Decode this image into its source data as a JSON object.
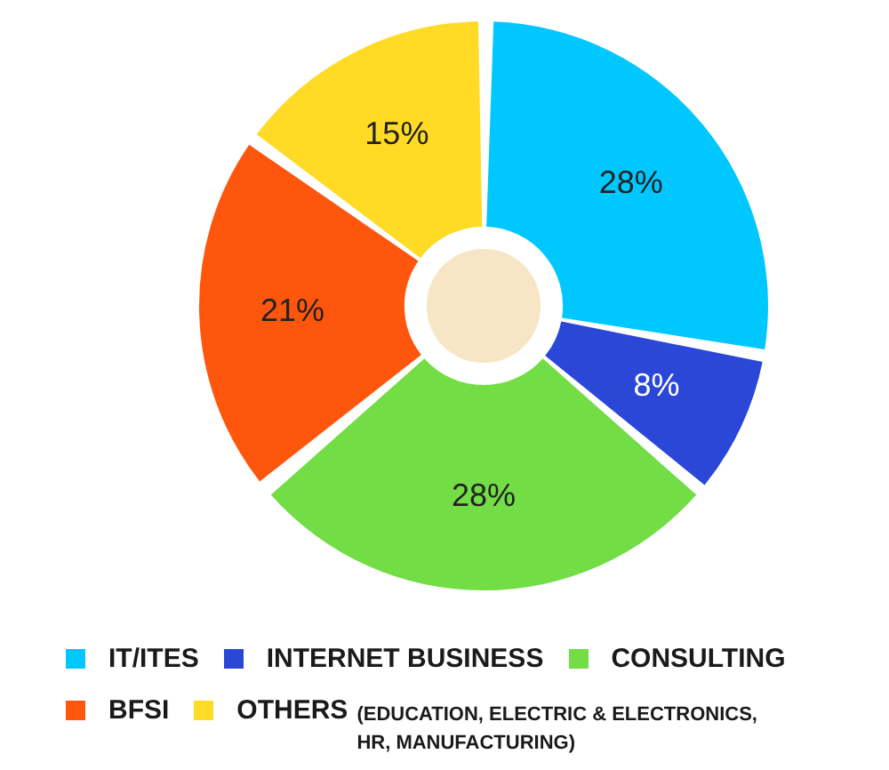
{
  "chart_data": {
    "type": "donut",
    "categories": [
      "IT/ITES",
      "INTERNET BUSINESS",
      "CONSULTING",
      "BFSI",
      "OTHERS (EDUCATION, ELECTRIC & ELECTRONICS, HR, MANUFACTURING)"
    ],
    "values": [
      28,
      8,
      28,
      21,
      15
    ],
    "colors": [
      "#00c8ff",
      "#2a47d8",
      "#72dd44",
      "#ff560d",
      "#ffdb26"
    ],
    "value_labels": [
      "28%",
      "8%",
      "28%",
      "21%",
      "15%"
    ],
    "legend": "bottom"
  }
}
